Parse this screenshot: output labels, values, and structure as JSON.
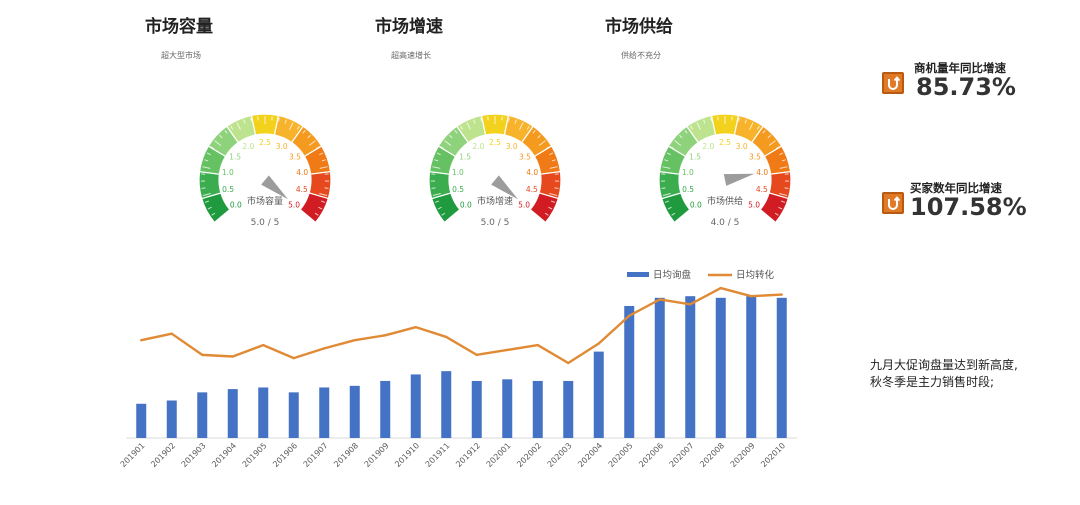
{
  "gauges": [
    {
      "title": "市场容量",
      "subtitle": "超大型市场",
      "center_label": "市场容量",
      "score_text": "5.0 / 5",
      "value": 5.0,
      "max": 5
    },
    {
      "title": "市场增速",
      "subtitle": "超高速增长",
      "center_label": "市场增速",
      "score_text": "5.0 / 5",
      "value": 5.0,
      "max": 5
    },
    {
      "title": "市场供给",
      "subtitle": "供给不充分",
      "center_label": "市场供给",
      "score_text": "4.0 / 5",
      "value": 4.0,
      "max": 5
    }
  ],
  "gauge_ticks": [
    "0.0",
    "0.5",
    "1.0",
    "1.5",
    "2.0",
    "2.5",
    "3.0",
    "3.5",
    "4.0",
    "4.5",
    "5.0"
  ],
  "gauge_colors": [
    "#1f9a3e",
    "#3cad4e",
    "#66c163",
    "#8fd27c",
    "#bde38f",
    "#f3d21d",
    "#f7b32b",
    "#f39a1f",
    "#ef7a16",
    "#e5491d",
    "#d01c22"
  ],
  "kpis": [
    {
      "label": "商机量年同比增速",
      "value": "85.73%",
      "icon": "growth-icon"
    },
    {
      "label": "买家数年同比增速",
      "value": "107.58%",
      "icon": "growth-icon"
    }
  ],
  "note": {
    "line1": "九月大促询盘量达到新高度,",
    "line2": "秋冬季是主力销售时段;"
  },
  "chart_data": {
    "type": "bar",
    "categories": [
      "201901",
      "201902",
      "201903",
      "201904",
      "201905",
      "201906",
      "201907",
      "201908",
      "201909",
      "201910",
      "201911",
      "201912",
      "202001",
      "202002",
      "202003",
      "202004",
      "202005",
      "202006",
      "202007",
      "202008",
      "202009",
      "202010"
    ],
    "series": [
      {
        "name": "日均询盘",
        "type": "bar",
        "color": "#4472c4",
        "values": [
          21,
          23,
          28,
          30,
          31,
          28,
          31,
          32,
          35,
          39,
          41,
          35,
          36,
          35,
          35,
          53,
          81,
          86,
          87,
          86,
          87,
          86
        ]
      },
      {
        "name": "日均转化",
        "type": "line",
        "color": "#e08a35",
        "values": [
          60,
          64,
          51,
          50,
          57,
          49,
          55,
          60,
          63,
          68,
          62,
          51,
          54,
          57,
          46,
          58,
          75,
          85,
          82,
          92,
          87,
          88
        ]
      }
    ],
    "ylim": [
      0,
      100
    ],
    "legend": "top-right",
    "grid": false
  }
}
